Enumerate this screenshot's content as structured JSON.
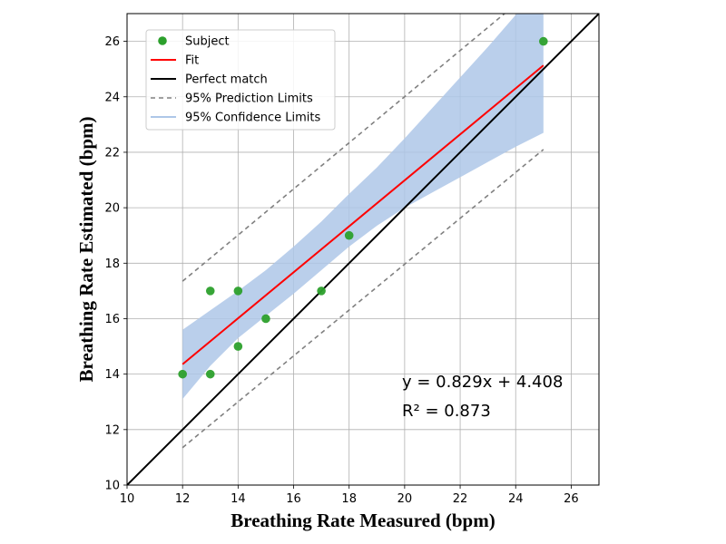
{
  "chart_data": {
    "type": "scatter",
    "xlabel": "Breathing Rate Measured (bpm)",
    "ylabel": "Breathing Rate Estimated (bpm)",
    "xlim": [
      10,
      27
    ],
    "ylim": [
      10,
      27
    ],
    "xticks": [
      10,
      12,
      14,
      16,
      18,
      20,
      22,
      24,
      26
    ],
    "yticks": [
      10,
      12,
      14,
      16,
      18,
      20,
      22,
      24,
      26
    ],
    "grid": true,
    "legend_position": "top-left",
    "series": [
      {
        "name": "Subject",
        "kind": "points",
        "color": "#2ca02c",
        "points": [
          {
            "x": 12,
            "y": 14
          },
          {
            "x": 13,
            "y": 17
          },
          {
            "x": 13,
            "y": 14
          },
          {
            "x": 14,
            "y": 17
          },
          {
            "x": 14,
            "y": 15
          },
          {
            "x": 15,
            "y": 16
          },
          {
            "x": 17,
            "y": 17
          },
          {
            "x": 18,
            "y": 19
          },
          {
            "x": 25,
            "y": 26
          }
        ]
      },
      {
        "name": "Fit",
        "kind": "line",
        "color": "#ff0000",
        "points": [
          {
            "x": 12,
            "y": 14.356
          },
          {
            "x": 25,
            "y": 25.133
          }
        ]
      },
      {
        "name": "Perfect match",
        "kind": "line",
        "color": "#000000",
        "points": [
          {
            "x": 10,
            "y": 10
          },
          {
            "x": 27,
            "y": 27
          }
        ]
      },
      {
        "name": "95% Prediction Limits",
        "kind": "dashed-band",
        "color": "#808080",
        "upper": [
          {
            "x": 12,
            "y": 17.35
          },
          {
            "x": 23.6,
            "y": 27
          }
        ],
        "lower": [
          {
            "x": 12,
            "y": 11.35
          },
          {
            "x": 25,
            "y": 22.1
          }
        ]
      },
      {
        "name": "95% Confidence Limits",
        "kind": "band",
        "color": "#aec7e8",
        "upper": [
          {
            "x": 12,
            "y": 15.6
          },
          {
            "x": 13,
            "y": 16.3
          },
          {
            "x": 14,
            "y": 17.0
          },
          {
            "x": 15,
            "y": 17.75
          },
          {
            "x": 16,
            "y": 18.6
          },
          {
            "x": 17,
            "y": 19.5
          },
          {
            "x": 18,
            "y": 20.5
          },
          {
            "x": 19,
            "y": 21.45
          },
          {
            "x": 20,
            "y": 22.5
          },
          {
            "x": 21,
            "y": 23.6
          },
          {
            "x": 22,
            "y": 24.7
          },
          {
            "x": 23,
            "y": 25.8
          },
          {
            "x": 24,
            "y": 26.95
          },
          {
            "x": 25,
            "y": 28.0
          }
        ],
        "lower": [
          {
            "x": 12,
            "y": 13.1
          },
          {
            "x": 13,
            "y": 14.3
          },
          {
            "x": 14,
            "y": 15.3
          },
          {
            "x": 15,
            "y": 16.1
          },
          {
            "x": 16,
            "y": 16.9
          },
          {
            "x": 17,
            "y": 17.75
          },
          {
            "x": 18,
            "y": 18.6
          },
          {
            "x": 19,
            "y": 19.35
          },
          {
            "x": 20,
            "y": 20.0
          },
          {
            "x": 21,
            "y": 20.55
          },
          {
            "x": 22,
            "y": 21.1
          },
          {
            "x": 23,
            "y": 21.65
          },
          {
            "x": 24,
            "y": 22.2
          },
          {
            "x": 25,
            "y": 22.7
          }
        ]
      }
    ],
    "annotations": [
      "y = 0.829x + 4.408",
      "R² = 0.873"
    ]
  }
}
